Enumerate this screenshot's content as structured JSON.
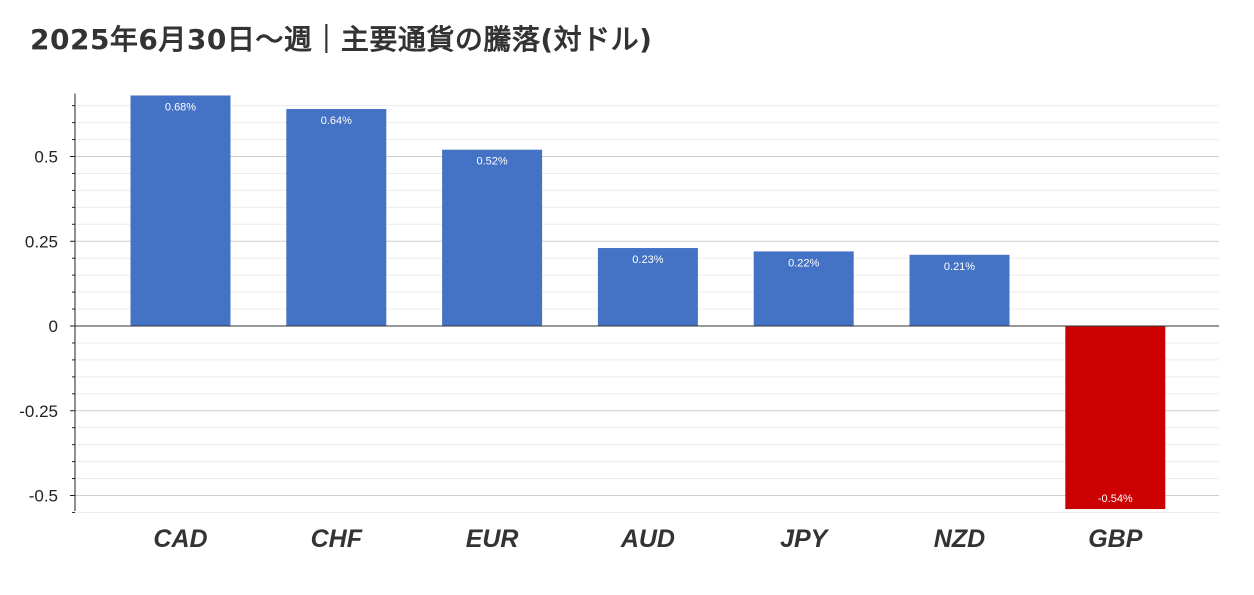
{
  "chart_data": {
    "type": "bar",
    "title": "2025年6月30日～週｜主要通貨の騰落(対ドル)",
    "categories": [
      "CAD",
      "CHF",
      "EUR",
      "AUD",
      "JPY",
      "NZD",
      "GBP"
    ],
    "values": [
      0.68,
      0.64,
      0.52,
      0.23,
      0.22,
      0.21,
      -0.54
    ],
    "data_labels": [
      "0.68%",
      "0.64%",
      "0.52%",
      "0.23%",
      "0.22%",
      "0.21%",
      "-0.54%"
    ],
    "yticks": [
      0.5,
      0.25,
      0,
      -0.25,
      -0.5
    ],
    "ytick_labels": [
      "0.5",
      "0.25",
      "0",
      "-0.25",
      "-0.5"
    ],
    "ylim": [
      -0.54,
      0.68
    ],
    "xlabel": "",
    "ylabel": "",
    "grid": true,
    "colors": {
      "positive": "#4472C4",
      "negative": "#CC0000",
      "grid": "#d9d9d9",
      "axis": "#222222"
    }
  }
}
